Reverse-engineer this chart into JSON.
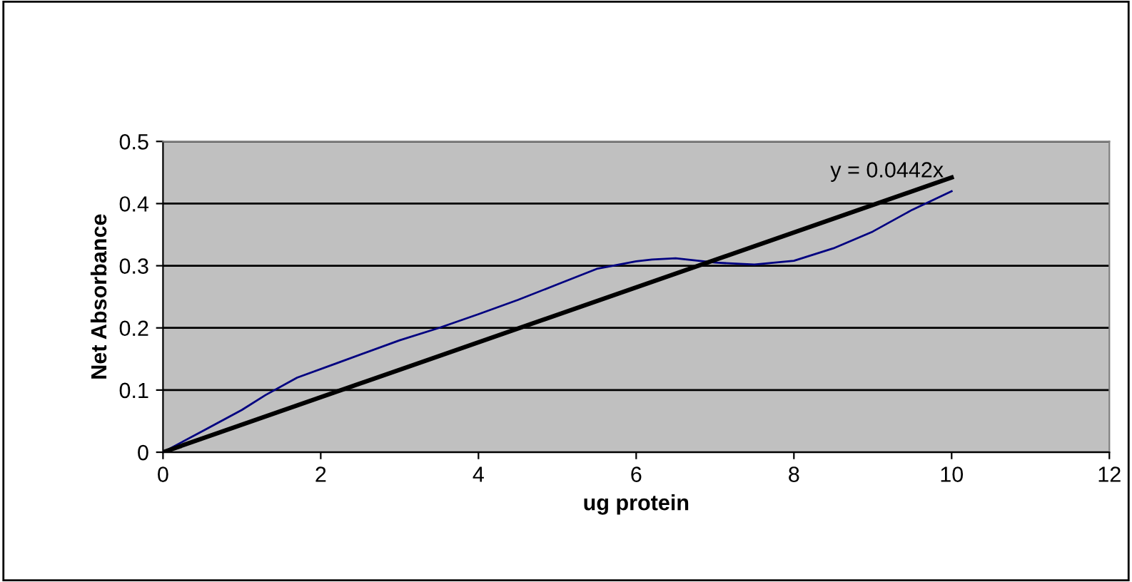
{
  "chart_data": {
    "type": "line",
    "xlabel": "ug protein",
    "ylabel": "Net Absorbance",
    "xlim": [
      0,
      12
    ],
    "xticks": [
      0,
      2,
      4,
      6,
      8,
      10,
      12
    ],
    "ylim": [
      0,
      0.5
    ],
    "yticks": [
      0,
      0.1,
      0.2,
      0.3,
      0.4,
      0.5
    ],
    "grid": "y",
    "series": [
      {
        "color": "#000080",
        "x": [
          0,
          0.5,
          1,
          1.3,
          1.7,
          2.2,
          3,
          3.5,
          4,
          4.5,
          5,
          5.5,
          6,
          6.2,
          6.5,
          7,
          7.5,
          8,
          8.5,
          9,
          9.5,
          10
        ],
        "values": [
          0,
          0.034,
          0.068,
          0.092,
          0.12,
          0.143,
          0.18,
          0.2,
          0.222,
          0.245,
          0.27,
          0.295,
          0.307,
          0.31,
          0.312,
          0.305,
          0.302,
          0.308,
          0.328,
          0.355,
          0.39,
          0.42
        ]
      },
      {
        "type": "line",
        "color": "#000000",
        "x": [
          0,
          10
        ],
        "values": [
          0,
          0.442
        ]
      }
    ],
    "annotations": [
      "y = 0.0442x"
    ]
  }
}
